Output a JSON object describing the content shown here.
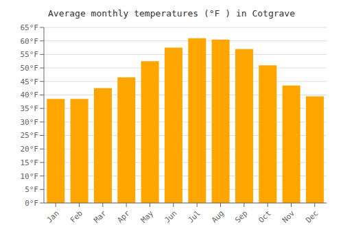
{
  "chart_data": {
    "type": "bar",
    "title": "Average monthly temperatures (°F ) in Cotgrave",
    "categories": [
      "Jan",
      "Feb",
      "Mar",
      "Apr",
      "May",
      "Jun",
      "Jul",
      "Aug",
      "Sep",
      "Oct",
      "Nov",
      "Dec"
    ],
    "values": [
      38.5,
      38.5,
      42.5,
      46.5,
      52.5,
      57.5,
      61.0,
      60.5,
      57.0,
      51.0,
      43.5,
      39.5
    ],
    "color": "#FFA500",
    "ylim": [
      0,
      65
    ],
    "yticks": [
      {
        "value": 0,
        "label": "0°F"
      },
      {
        "value": 5,
        "label": "5°F"
      },
      {
        "value": 10,
        "label": "10°F"
      },
      {
        "value": 15,
        "label": "15°F"
      },
      {
        "value": 20,
        "label": "20°F"
      },
      {
        "value": 25,
        "label": "25°F"
      },
      {
        "value": 30,
        "label": "30°F"
      },
      {
        "value": 35,
        "label": "35°F"
      },
      {
        "value": 40,
        "label": "40°F"
      },
      {
        "value": 45,
        "label": "45°F"
      },
      {
        "value": 50,
        "label": "50°F"
      },
      {
        "value": 55,
        "label": "55°F"
      },
      {
        "value": 60,
        "label": "60°F"
      },
      {
        "value": 65,
        "label": "65°F"
      }
    ],
    "grid": true
  }
}
